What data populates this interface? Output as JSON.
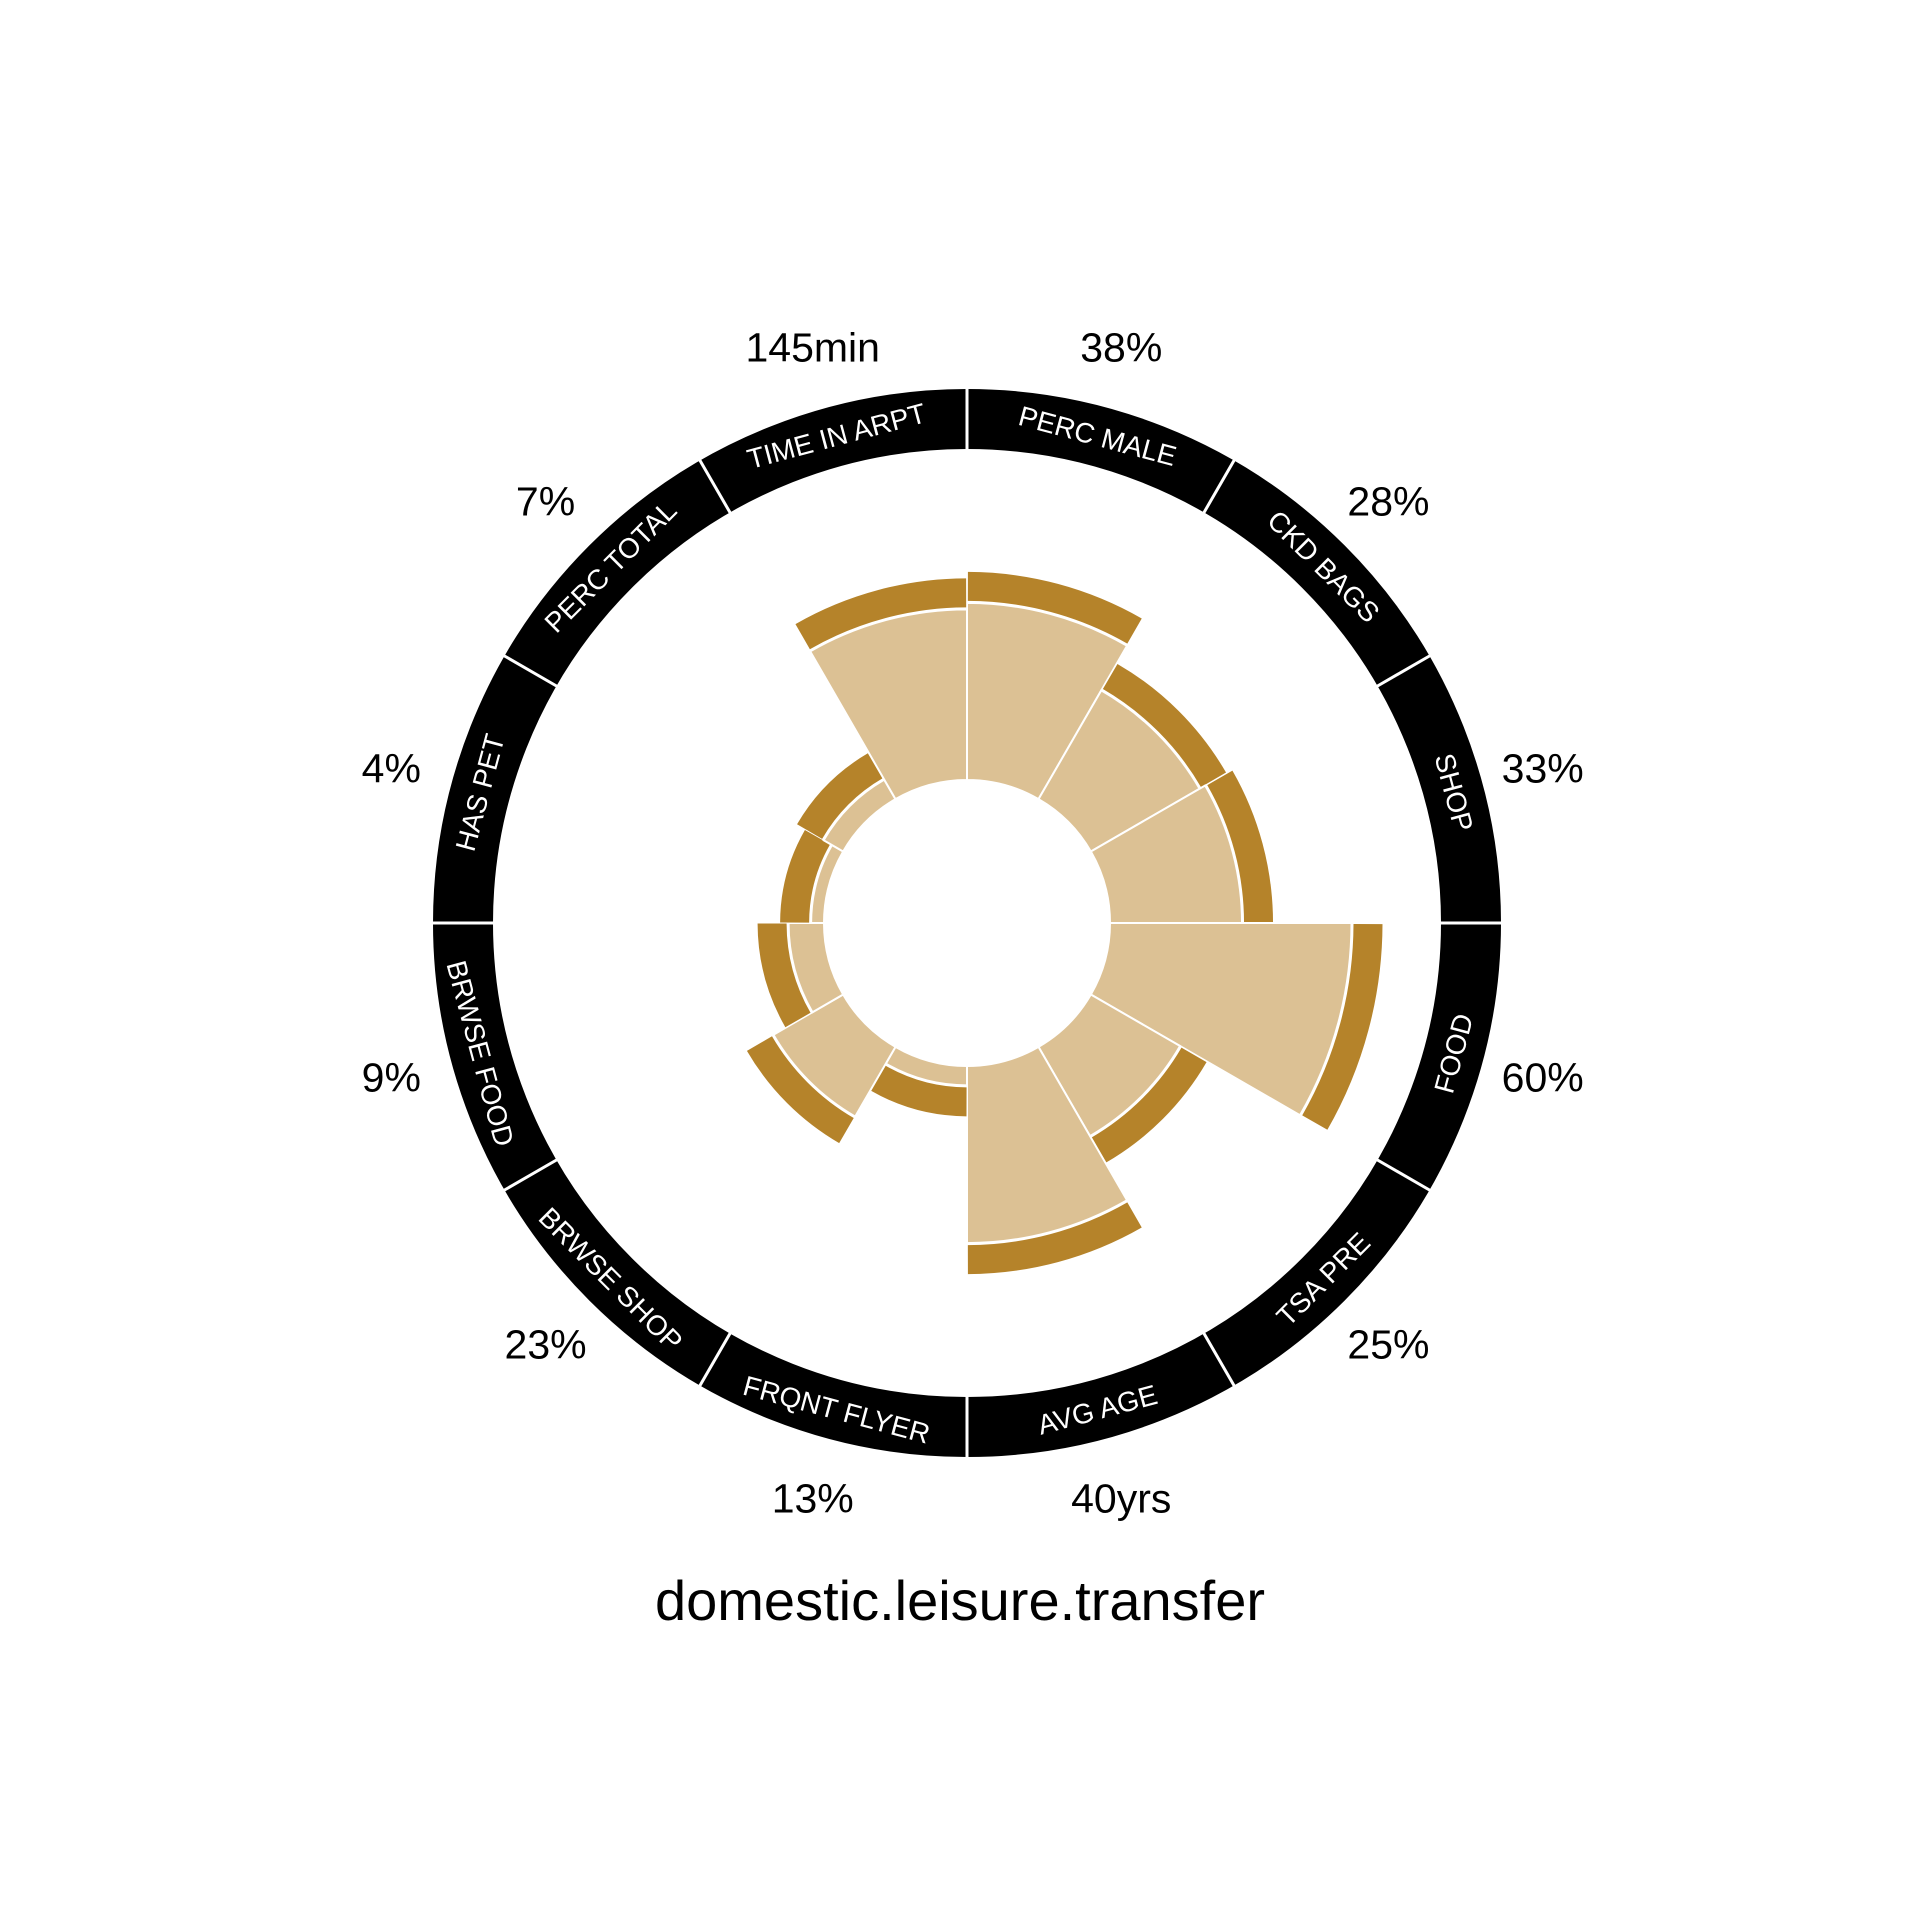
{
  "chart_data": {
    "type": "polar-bar",
    "title": "domestic.leisure.transfer",
    "categories": [
      {
        "name": "PERC MALE",
        "label": "38%",
        "value": 38
      },
      {
        "name": "CKD BAGS",
        "label": "28%",
        "value": 28
      },
      {
        "name": "SHOP",
        "label": "33%",
        "value": 33
      },
      {
        "name": "FOOD",
        "label": "60%",
        "value": 60
      },
      {
        "name": "TSA PRE",
        "label": "25%",
        "value": 25
      },
      {
        "name": "AVG AGE",
        "label": "40yrs",
        "value": 40
      },
      {
        "name": "FRQNT FLYER",
        "label": "13%",
        "value": 13
      },
      {
        "name": "BRWSE SHOP",
        "label": "23%",
        "value": 23
      },
      {
        "name": "BRWSE FOOD",
        "label": "9%",
        "value": 9
      },
      {
        "name": "HAS PET",
        "label": "4%",
        "value": 4
      },
      {
        "name": "PERC TOTAL",
        "label": "7%",
        "value": 7
      },
      {
        "name": "TIME IN ARPT",
        "label": "145min",
        "value": 145
      }
    ],
    "bar_heights": [
      0.55,
      0.39,
      0.41,
      0.75,
      0.32,
      0.55,
      0.06,
      0.25,
      0.11,
      0.04,
      0.07,
      0.53
    ],
    "colors": {
      "bar_fill": "#dcc194",
      "bar_cap": "#b5832a",
      "ring": "#000000",
      "ring_text": "#ffffff",
      "separator": "#ffffff"
    }
  }
}
